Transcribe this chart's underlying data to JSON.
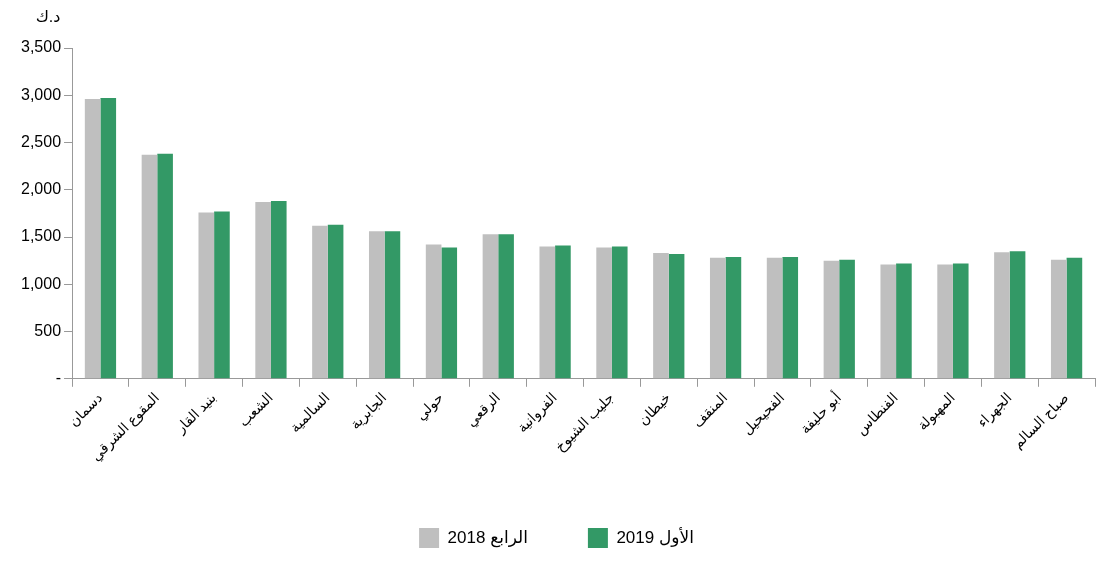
{
  "chart_data": {
    "type": "bar",
    "ylabel": "د.ك",
    "categories": [
      "دسمان",
      "المقوع الشرقي",
      "بنيد القار",
      "الشعب",
      "السالمية",
      "الجابرية",
      "حولي",
      "الرقعي",
      "الفروانية",
      "جليب الشيوخ",
      "خيطان",
      "المنقف",
      "الفحيحيل",
      "أبو حليفة",
      "الفنطاس",
      "المهبولة",
      "الجهراء",
      "صباح السالم"
    ],
    "series": [
      {
        "name": "الرابع 2018",
        "color": "#bfbfbf",
        "values": [
          2960,
          2370,
          1760,
          1870,
          1620,
          1560,
          1420,
          1530,
          1400,
          1390,
          1330,
          1280,
          1280,
          1250,
          1210,
          1210,
          1340,
          1260
        ]
      },
      {
        "name": "الأول 2019",
        "color": "#339966",
        "values": [
          2970,
          2380,
          1770,
          1880,
          1630,
          1560,
          1390,
          1530,
          1410,
          1400,
          1320,
          1290,
          1290,
          1260,
          1220,
          1220,
          1350,
          1280
        ]
      }
    ],
    "ylim": [
      0,
      3500
    ],
    "yticks": [
      {
        "value": 0,
        "label": "-"
      },
      {
        "value": 500,
        "label": "500"
      },
      {
        "value": 1000,
        "label": "1,000"
      },
      {
        "value": 1500,
        "label": "1,500"
      },
      {
        "value": 2000,
        "label": "2,000"
      },
      {
        "value": 2500,
        "label": "2,500"
      },
      {
        "value": 3000,
        "label": "3,000"
      },
      {
        "value": 3500,
        "label": "3,500"
      }
    ],
    "grid": false,
    "legend": "bottom"
  }
}
